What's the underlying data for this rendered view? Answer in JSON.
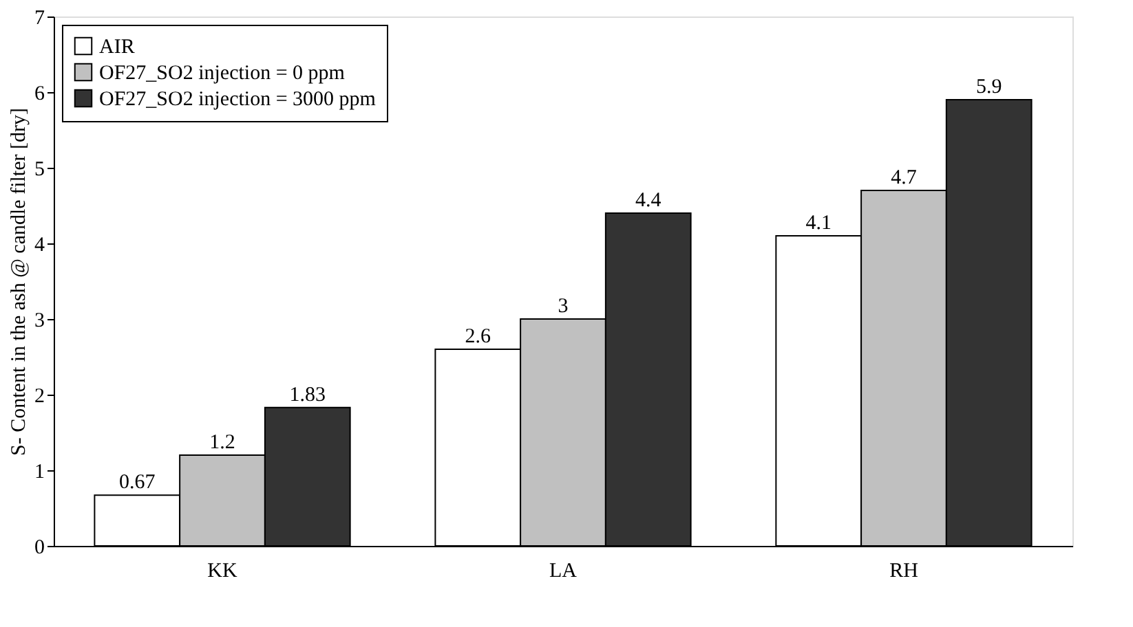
{
  "chart_data": {
    "type": "bar",
    "ylabel": "S- Content in the ash @ candle filter [dry]",
    "categories": [
      "KK",
      "LA",
      "RH"
    ],
    "series": [
      {
        "name": "AIR",
        "color": "#ffffff",
        "values": [
          0.67,
          2.6,
          4.1
        ]
      },
      {
        "name": "OF27_SO2 injection = 0 ppm",
        "color": "#c0c0c0",
        "values": [
          1.2,
          3,
          4.7
        ]
      },
      {
        "name": "OF27_SO2 injection = 3000 ppm",
        "color": "#333333",
        "values": [
          1.83,
          4.4,
          5.9
        ]
      }
    ],
    "ylim": [
      0,
      7
    ],
    "yticks": [
      0,
      1,
      2,
      3,
      4,
      5,
      6,
      7
    ],
    "grid": false,
    "legend": "top left",
    "data_labels": true
  }
}
